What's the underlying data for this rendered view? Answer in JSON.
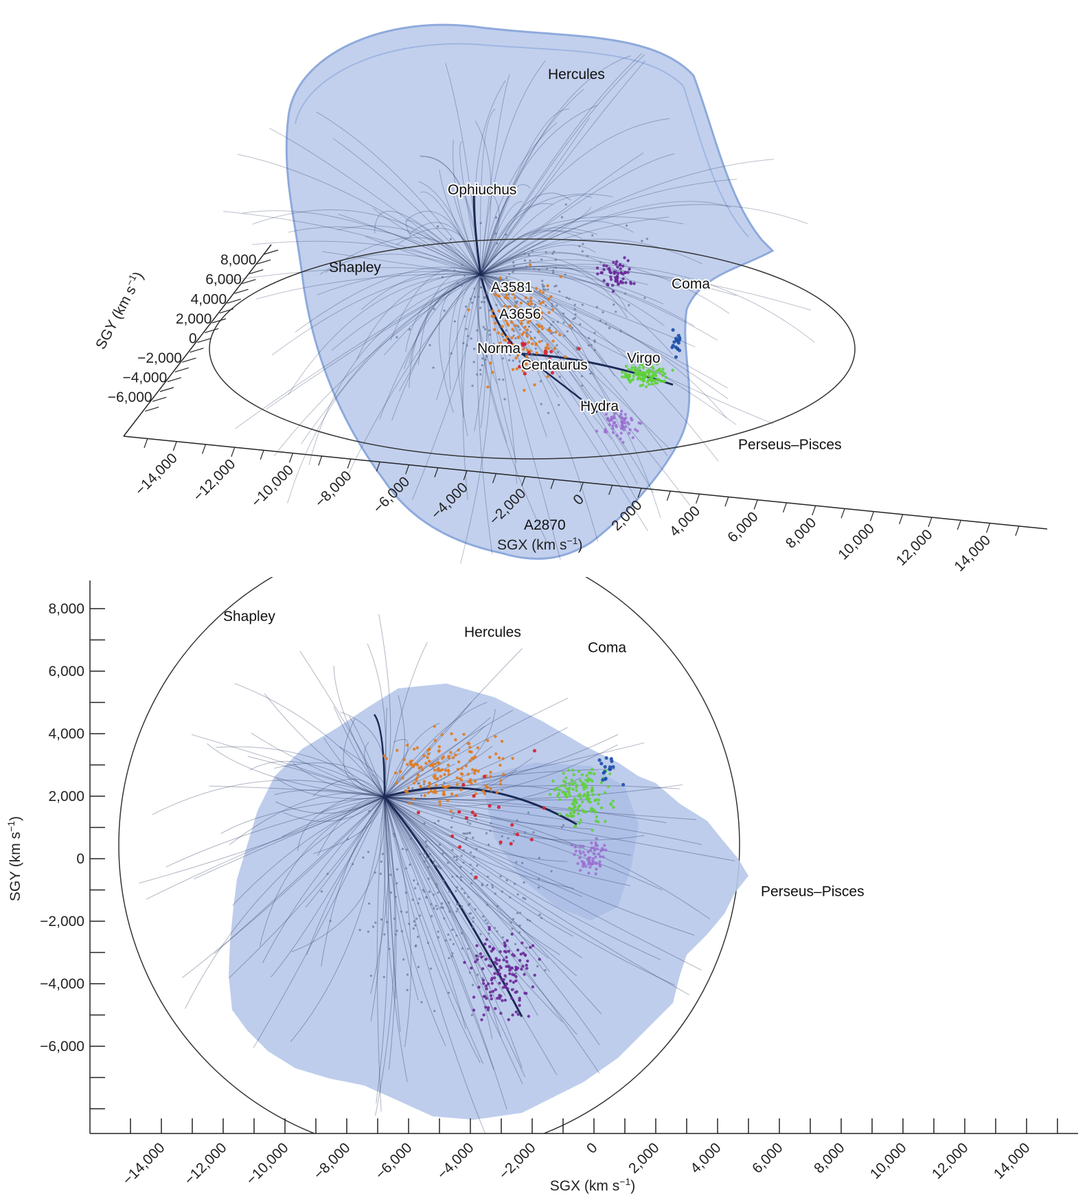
{
  "chart_data": [
    {
      "type": "scatter",
      "projection": "3d-perspective",
      "xlabel_main": "SGX (km s",
      "xlabel_sup": "−1",
      "xlabel_tail": ")",
      "ylabel_main": "SGY (km s",
      "ylabel_sup": "−1",
      "ylabel_tail": ")",
      "xticks": [
        "−14,000",
        "−12,000",
        "−10,000",
        "−8,000",
        "−6,000",
        "−4,000",
        "−2,000",
        "0",
        "2,000",
        "4,000",
        "6,000",
        "8,000",
        "10,000",
        "12,000",
        "14,000"
      ],
      "yticks": [
        "8,000",
        "6,000",
        "4,000",
        "2,000",
        "0",
        "−2,000",
        "−4,000",
        "−6,000"
      ],
      "labels": [
        {
          "text": "Hercules",
          "x": 0,
          "y": 0
        },
        {
          "text": "Ophiuchus",
          "x": 0,
          "y": 0
        },
        {
          "text": "Shapley",
          "x": 0,
          "y": 0
        },
        {
          "text": "A3581",
          "x": 0,
          "y": 0
        },
        {
          "text": "A3656",
          "x": 0,
          "y": 0
        },
        {
          "text": "Coma",
          "x": 0,
          "y": 0
        },
        {
          "text": "Norma",
          "x": 0,
          "y": 0
        },
        {
          "text": "Centaurus",
          "x": 0,
          "y": 0
        },
        {
          "text": "Virgo",
          "x": 0,
          "y": 0
        },
        {
          "text": "Hydra",
          "x": 0,
          "y": 0
        },
        {
          "text": "Perseus–Pisces",
          "x": 0,
          "y": 0
        },
        {
          "text": "A2870",
          "x": 0,
          "y": 0
        }
      ]
    },
    {
      "type": "scatter",
      "projection": "sgx-sgy",
      "xlabel_main": "SGX (km s",
      "xlabel_sup": "−1",
      "xlabel_tail": ")",
      "ylabel_main": "SGY (km s",
      "ylabel_sup": "−1",
      "ylabel_tail": ")",
      "xlim": [
        -15000,
        15000
      ],
      "ylim": [
        -9000,
        9000
      ],
      "xticks": [
        "−14,000",
        "−12,000",
        "−10,000",
        "−8,000",
        "−6,000",
        "−4,000",
        "−2,000",
        "0",
        "2,000",
        "4,000",
        "6,000",
        "8,000",
        "10,000",
        "12,000",
        "14,000"
      ],
      "xtick_values": [
        -14000,
        -12000,
        -10000,
        -8000,
        -6000,
        -4000,
        -2000,
        0,
        2000,
        4000,
        6000,
        8000,
        10000,
        12000,
        14000
      ],
      "yticks": [
        "8,000",
        "6,000",
        "4,000",
        "2,000",
        "0",
        "−2,000",
        "−4,000",
        "−6,000"
      ],
      "ytick_values": [
        8000,
        6000,
        4000,
        2000,
        0,
        -2000,
        -4000,
        -6000
      ],
      "labels": [
        {
          "text": "Shapley",
          "x": -12000,
          "y": 7600
        },
        {
          "text": "Hercules",
          "x": -4200,
          "y": 7100
        },
        {
          "text": "Coma",
          "x": -200,
          "y": 6600
        },
        {
          "text": "Perseus–Pisces",
          "x": 5400,
          "y": -1200
        }
      ]
    }
  ],
  "colors": {
    "basin": "#b7c8ea",
    "basin_edge": "#8eaadc",
    "flow_lines": "#1c2a55",
    "dots_grey": "#6a7a9b",
    "orange": "#e07a1f",
    "green": "#5fd23a",
    "purple": "#6a2a9a",
    "red": "#d81e2a",
    "blue": "#1d4fa8",
    "axis": "#222222"
  }
}
